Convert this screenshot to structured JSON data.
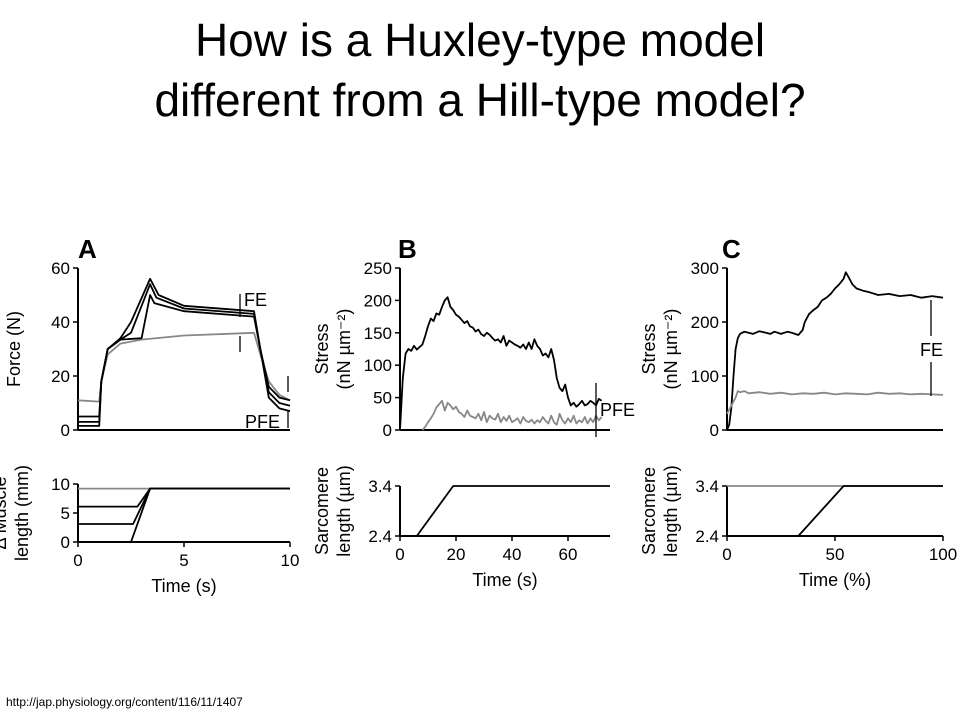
{
  "slide": {
    "title_line1": "How is a Huxley-type model",
    "title_line2": "different from a Hill-type model?",
    "source": "http://jap.physiology.org/content/116/11/1407"
  },
  "colors": {
    "dark": "#000000",
    "gray": "#888888"
  },
  "chart_data": [
    {
      "panel": "A-top",
      "panel_label": "A",
      "type": "line",
      "ylabel": "Force (N)",
      "xlim": [
        0,
        10
      ],
      "ylim": [
        0,
        60
      ],
      "yticks": [
        0,
        20,
        40,
        60
      ],
      "annotations": [
        "FE",
        "PFE"
      ],
      "series": [
        {
          "color": "#888888",
          "x": [
            0,
            1.0,
            1.1,
            1.4,
            2,
            3,
            5,
            8.3,
            8.6,
            9,
            9.5,
            10
          ],
          "y": [
            11,
            10.5,
            18,
            28,
            32,
            33.5,
            35,
            36,
            28,
            18,
            13,
            11
          ]
        },
        {
          "color": "#000000",
          "x": [
            0,
            1.0,
            1.1,
            1.4,
            2,
            3,
            3.4,
            3.6,
            5,
            8.3,
            8.6,
            9,
            9.5,
            10
          ],
          "y": [
            5,
            5,
            18,
            30,
            33.5,
            34,
            50,
            47,
            44,
            42,
            30,
            16,
            12,
            11
          ]
        },
        {
          "color": "#000000",
          "x": [
            0,
            1.0,
            1.1,
            1.4,
            2,
            2.5,
            3.4,
            3.7,
            5,
            8.3,
            8.6,
            9,
            9.5,
            10
          ],
          "y": [
            3,
            3,
            18,
            30,
            33.5,
            36,
            54,
            49,
            45,
            43,
            30,
            14,
            10,
            9
          ]
        },
        {
          "color": "#000000",
          "x": [
            0,
            1.0,
            1.1,
            1.4,
            2,
            2.5,
            3.4,
            3.8,
            5,
            8.3,
            8.6,
            9,
            9.5,
            10
          ],
          "y": [
            1.5,
            1.5,
            18,
            30,
            34,
            40,
            56,
            50,
            46,
            44,
            30,
            12,
            8,
            7
          ]
        }
      ]
    },
    {
      "panel": "A-bottom",
      "type": "line",
      "xlabel": "Time (s)",
      "ylabel": "Δ Muscle length (mm)",
      "xlim": [
        0,
        10
      ],
      "ylim": [
        0,
        10
      ],
      "xticks": [
        0,
        5,
        10
      ],
      "yticks": [
        0,
        5,
        10
      ],
      "series": [
        {
          "color": "#888888",
          "x": [
            0,
            10
          ],
          "y": [
            9.2,
            9.2
          ]
        },
        {
          "color": "#000000",
          "x": [
            0,
            2.5,
            3.4,
            10
          ],
          "y": [
            0,
            0,
            9.2,
            9.2
          ]
        },
        {
          "color": "#000000",
          "x": [
            0,
            2.6,
            3.4,
            10
          ],
          "y": [
            3.1,
            3.1,
            9.2,
            9.2
          ]
        },
        {
          "color": "#000000",
          "x": [
            0,
            2.8,
            3.4,
            10
          ],
          "y": [
            6.1,
            6.1,
            9.2,
            9.2
          ]
        }
      ]
    },
    {
      "panel": "B-top",
      "panel_label": "B",
      "type": "line",
      "ylabel": "Stress (nN µm⁻²)",
      "xlim": [
        0,
        75
      ],
      "ylim": [
        0,
        250
      ],
      "yticks": [
        0,
        50,
        100,
        150,
        200,
        250
      ],
      "annotations": [
        "PFE"
      ],
      "series": [
        {
          "color": "#000000",
          "x": [
            0,
            1,
            2,
            3,
            4,
            5,
            6,
            7,
            8,
            9,
            10,
            11,
            12,
            13,
            14,
            15,
            16,
            17,
            18,
            19,
            20,
            21,
            22,
            23,
            24,
            25,
            26,
            27,
            28,
            29,
            30,
            31,
            32,
            33,
            34,
            35,
            36,
            37,
            38,
            39,
            40,
            41,
            42,
            43,
            44,
            45,
            46,
            47,
            48,
            49,
            50,
            51,
            52,
            53,
            54,
            55,
            56,
            57,
            58,
            59,
            60,
            61,
            62,
            63,
            64,
            65,
            66,
            67,
            68,
            69,
            70,
            71,
            72
          ],
          "y": [
            0,
            80,
            118,
            125,
            122,
            130,
            124,
            128,
            132,
            145,
            160,
            172,
            168,
            180,
            178,
            190,
            200,
            205,
            190,
            185,
            178,
            175,
            170,
            165,
            168,
            160,
            158,
            152,
            155,
            148,
            145,
            150,
            147,
            142,
            138,
            140,
            135,
            145,
            130,
            138,
            135,
            132,
            130,
            127,
            132,
            125,
            135,
            125,
            140,
            130,
            125,
            115,
            118,
            112,
            125,
            108,
            80,
            65,
            60,
            70,
            50,
            38,
            42,
            36,
            40,
            45,
            38,
            40,
            45,
            42,
            38,
            48,
            45
          ]
        },
        {
          "color": "#888888",
          "x": [
            8,
            9,
            10,
            11,
            12,
            13,
            14,
            15,
            16,
            17,
            18,
            19,
            20,
            21,
            22,
            23,
            24,
            25,
            26,
            27,
            28,
            29,
            30,
            31,
            32,
            33,
            34,
            35,
            36,
            37,
            38,
            39,
            40,
            41,
            42,
            43,
            44,
            45,
            46,
            47,
            48,
            49,
            50,
            51,
            52,
            53,
            54,
            55,
            56,
            57,
            58,
            59,
            60,
            61,
            62,
            63,
            64,
            65,
            66,
            67,
            68,
            69,
            70,
            71,
            72
          ],
          "y": [
            0,
            5,
            12,
            18,
            25,
            35,
            40,
            45,
            30,
            42,
            38,
            32,
            36,
            28,
            25,
            20,
            30,
            22,
            20,
            18,
            25,
            15,
            28,
            12,
            22,
            18,
            16,
            25,
            12,
            20,
            14,
            22,
            12,
            15,
            18,
            10,
            20,
            14,
            12,
            16,
            10,
            15,
            12,
            20,
            14,
            10,
            22,
            12,
            8,
            25,
            15,
            10,
            18,
            12,
            22,
            10,
            15,
            12,
            20,
            10,
            18,
            12,
            22,
            15,
            20
          ]
        }
      ]
    },
    {
      "panel": "B-bottom",
      "type": "line",
      "xlabel": "Time (s)",
      "ylabel": "Sarcomere length (µm)",
      "xlim": [
        0,
        75
      ],
      "ylim": [
        2.4,
        3.4
      ],
      "xticks": [
        0,
        20,
        40,
        60
      ],
      "yticks": [
        2.4,
        3.4
      ],
      "series": [
        {
          "color": "#000000",
          "x": [
            0,
            6,
            19,
            75
          ],
          "y": [
            2.4,
            2.4,
            3.4,
            3.4
          ]
        }
      ]
    },
    {
      "panel": "C-top",
      "panel_label": "C",
      "type": "line",
      "ylabel": "Stress (nN µm⁻²)",
      "xlim": [
        0,
        100
      ],
      "ylim": [
        0,
        300
      ],
      "yticks": [
        0,
        100,
        200,
        300
      ],
      "annotations": [
        "FE"
      ],
      "series": [
        {
          "color": "#000000",
          "x": [
            0,
            1,
            2,
            3,
            4,
            5,
            6,
            8,
            10,
            12,
            15,
            18,
            20,
            22,
            25,
            28,
            30,
            33,
            35,
            36,
            38,
            40,
            42,
            44,
            46,
            48,
            50,
            52,
            54,
            55,
            56,
            58,
            60,
            63,
            66,
            70,
            75,
            80,
            85,
            90,
            95,
            100
          ],
          "y": [
            0,
            10,
            40,
            100,
            150,
            170,
            178,
            182,
            180,
            178,
            183,
            180,
            178,
            182,
            178,
            182,
            180,
            176,
            185,
            200,
            215,
            222,
            228,
            240,
            245,
            252,
            262,
            270,
            280,
            292,
            285,
            270,
            262,
            258,
            255,
            250,
            252,
            248,
            250,
            245,
            248,
            245
          ]
        },
        {
          "color": "#888888",
          "x": [
            0,
            2,
            4,
            5,
            6,
            8,
            10,
            15,
            20,
            25,
            30,
            35,
            40,
            45,
            50,
            55,
            60,
            65,
            70,
            75,
            80,
            85,
            90,
            95,
            100
          ],
          "y": [
            30,
            45,
            60,
            72,
            70,
            72,
            68,
            70,
            67,
            69,
            66,
            68,
            67,
            69,
            66,
            68,
            67,
            66,
            69,
            67,
            68,
            66,
            67,
            66,
            65
          ]
        }
      ]
    },
    {
      "panel": "C-bottom",
      "type": "line",
      "xlabel": "Time (%)",
      "ylabel": "Sarcomere length (µm)",
      "xlim": [
        0,
        100
      ],
      "ylim": [
        2.4,
        3.4
      ],
      "xticks": [
        0,
        50,
        100
      ],
      "yticks": [
        2.4,
        3.4
      ],
      "series": [
        {
          "color": "#888888",
          "x": [
            0,
            100
          ],
          "y": [
            3.4,
            3.4
          ]
        },
        {
          "color": "#000000",
          "x": [
            0,
            33,
            54,
            100
          ],
          "y": [
            2.4,
            2.4,
            3.4,
            3.4
          ]
        }
      ]
    }
  ]
}
